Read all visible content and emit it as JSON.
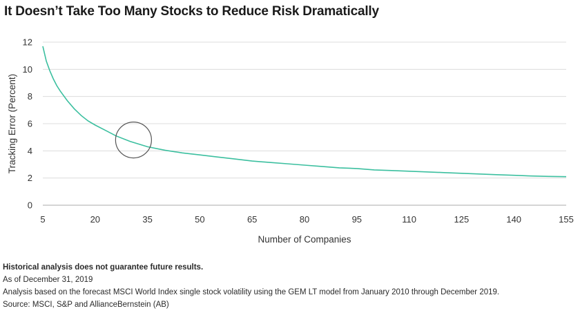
{
  "title": "It Doesn’t Take Too Many Stocks to Reduce Risk Dramatically",
  "chart_data": {
    "type": "line",
    "title": "It Doesn’t Take Too Many Stocks to Reduce Risk Dramatically",
    "xlabel": "Number of Companies",
    "ylabel": "Tracking Error (Percent)",
    "xlim": [
      5,
      155
    ],
    "ylim": [
      0,
      12
    ],
    "x_ticks": [
      5,
      20,
      35,
      50,
      65,
      80,
      95,
      110,
      125,
      140,
      155
    ],
    "y_ticks": [
      0,
      2,
      4,
      6,
      8,
      10,
      12
    ],
    "grid": "horizontal",
    "legend": "none",
    "line_color": "#3bbf9f",
    "highlight": {
      "shape": "circle",
      "x": 31,
      "y": 4.8
    },
    "series": [
      {
        "values_x": [
          5,
          6,
          7,
          8,
          9,
          10,
          12,
          14,
          16,
          18,
          20,
          23,
          26,
          30,
          35,
          40,
          45,
          50,
          55,
          60,
          65,
          70,
          75,
          80,
          85,
          90,
          95,
          100,
          105,
          110,
          115,
          120,
          125,
          130,
          135,
          140,
          145,
          150,
          155
        ],
        "values_y": [
          11.7,
          10.6,
          9.9,
          9.3,
          8.8,
          8.4,
          7.7,
          7.1,
          6.6,
          6.2,
          5.9,
          5.5,
          5.1,
          4.7,
          4.3,
          4.05,
          3.85,
          3.7,
          3.55,
          3.4,
          3.25,
          3.15,
          3.05,
          2.95,
          2.85,
          2.75,
          2.7,
          2.6,
          2.55,
          2.5,
          2.45,
          2.4,
          2.35,
          2.3,
          2.25,
          2.2,
          2.15,
          2.12,
          2.1
        ]
      }
    ]
  },
  "footnotes": {
    "disclaimer": "Historical analysis does not guarantee future results.",
    "as_of": "As of December 31, 2019",
    "analysis": "Analysis based on the forecast MSCI World Index single stock volatility using the GEM LT model from January 2010 through December 2019.",
    "source": "Source: MSCI, S&P and AllianceBernstein (AB)"
  }
}
